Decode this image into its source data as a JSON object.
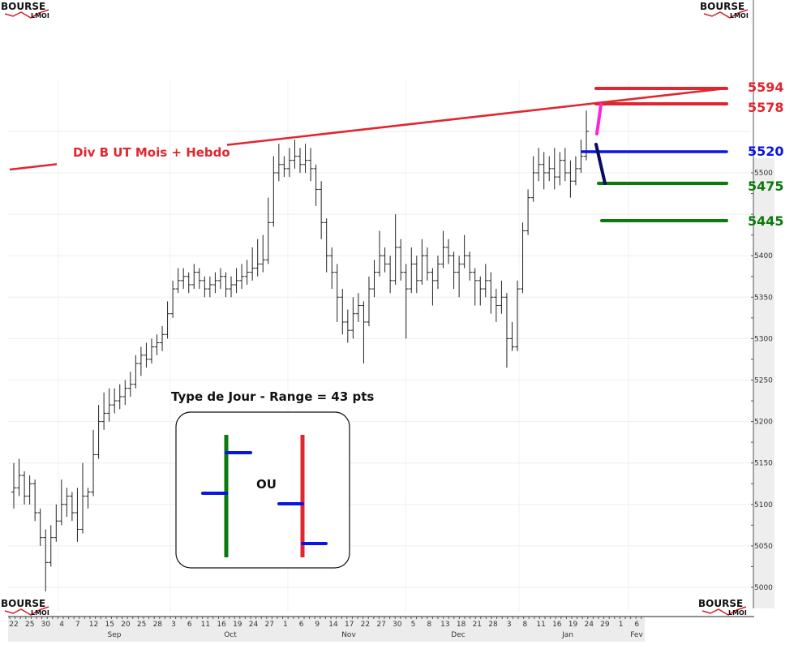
{
  "logo": {
    "text_top": "BOURSE",
    "text_bottom": "LMOI"
  },
  "chart_data": {
    "type": "ohlc",
    "title": "",
    "y_ticks": [
      5000,
      5050,
      5100,
      5150,
      5200,
      5250,
      5300,
      5350,
      5400,
      5500
    ],
    "ylim": [
      4990,
      5610
    ],
    "x_day_labels": [
      "22",
      "25",
      "30",
      "4",
      "7",
      "12",
      "15",
      "20",
      "25",
      "28",
      "3",
      "6",
      "11",
      "16",
      "19",
      "24",
      "27",
      "1",
      "6",
      "9",
      "14",
      "17",
      "22",
      "27",
      "30",
      "5",
      "8",
      "13",
      "18",
      "21",
      "28",
      "3",
      "8",
      "11",
      "16",
      "19",
      "24",
      "29",
      "1",
      "6"
    ],
    "x_month_labels": [
      {
        "label": "Sep",
        "after_index": 6
      },
      {
        "label": "Oct",
        "after_index": 13
      },
      {
        "label": "Nov",
        "after_index": 21
      },
      {
        "label": "Dec",
        "after_index": 28
      },
      {
        "label": "Jan",
        "after_index": 35
      },
      {
        "label": "Fev",
        "after_index": 39
      }
    ],
    "bars": [
      [
        5115,
        5150,
        5095,
        5120
      ],
      [
        5120,
        5155,
        5110,
        5135
      ],
      [
        5135,
        5140,
        5100,
        5110
      ],
      [
        5110,
        5135,
        5100,
        5125
      ],
      [
        5125,
        5130,
        5080,
        5090
      ],
      [
        5090,
        5095,
        5050,
        5060
      ],
      [
        5060,
        5070,
        4995,
        5030
      ],
      [
        5030,
        5075,
        5025,
        5060
      ],
      [
        5060,
        5100,
        5055,
        5080
      ],
      [
        5080,
        5130,
        5075,
        5100
      ],
      [
        5100,
        5120,
        5085,
        5110
      ],
      [
        5110,
        5115,
        5080,
        5090
      ],
      [
        5090,
        5120,
        5055,
        5070
      ],
      [
        5070,
        5150,
        5065,
        5110
      ],
      [
        5110,
        5120,
        5095,
        5115
      ],
      [
        5115,
        5190,
        5110,
        5160
      ],
      [
        5160,
        5220,
        5155,
        5200
      ],
      [
        5200,
        5235,
        5190,
        5210
      ],
      [
        5210,
        5240,
        5200,
        5220
      ],
      [
        5220,
        5240,
        5210,
        5225
      ],
      [
        5225,
        5245,
        5215,
        5230
      ],
      [
        5230,
        5250,
        5220,
        5240
      ],
      [
        5240,
        5260,
        5230,
        5245
      ],
      [
        5245,
        5280,
        5240,
        5270
      ],
      [
        5270,
        5290,
        5255,
        5280
      ],
      [
        5280,
        5295,
        5265,
        5275
      ],
      [
        5275,
        5300,
        5270,
        5290
      ],
      [
        5290,
        5305,
        5280,
        5295
      ],
      [
        5295,
        5315,
        5285,
        5305
      ],
      [
        5305,
        5345,
        5300,
        5330
      ],
      [
        5330,
        5370,
        5325,
        5360
      ],
      [
        5360,
        5385,
        5355,
        5370
      ],
      [
        5370,
        5385,
        5360,
        5375
      ],
      [
        5375,
        5380,
        5355,
        5365
      ],
      [
        5365,
        5390,
        5360,
        5380
      ],
      [
        5380,
        5385,
        5360,
        5370
      ],
      [
        5370,
        5375,
        5350,
        5360
      ],
      [
        5360,
        5375,
        5350,
        5365
      ],
      [
        5365,
        5380,
        5355,
        5370
      ],
      [
        5370,
        5385,
        5360,
        5375
      ],
      [
        5375,
        5380,
        5350,
        5360
      ],
      [
        5360,
        5375,
        5350,
        5365
      ],
      [
        5365,
        5385,
        5355,
        5370
      ],
      [
        5370,
        5390,
        5360,
        5375
      ],
      [
        5375,
        5395,
        5365,
        5380
      ],
      [
        5380,
        5410,
        5370,
        5385
      ],
      [
        5385,
        5420,
        5375,
        5390
      ],
      [
        5390,
        5425,
        5380,
        5395
      ],
      [
        5395,
        5470,
        5390,
        5440
      ],
      [
        5440,
        5520,
        5435,
        5500
      ],
      [
        5500,
        5535,
        5490,
        5510
      ],
      [
        5510,
        5520,
        5495,
        5505
      ],
      [
        5505,
        5530,
        5495,
        5515
      ],
      [
        5515,
        5540,
        5505,
        5520
      ],
      [
        5520,
        5530,
        5500,
        5510
      ],
      [
        5510,
        5535,
        5500,
        5515
      ],
      [
        5515,
        5530,
        5490,
        5505
      ],
      [
        5505,
        5510,
        5460,
        5480
      ],
      [
        5480,
        5490,
        5420,
        5440
      ],
      [
        5440,
        5445,
        5380,
        5400
      ],
      [
        5400,
        5410,
        5360,
        5380
      ],
      [
        5380,
        5390,
        5320,
        5350
      ],
      [
        5350,
        5360,
        5305,
        5320
      ],
      [
        5320,
        5335,
        5295,
        5310
      ],
      [
        5310,
        5350,
        5300,
        5330
      ],
      [
        5330,
        5355,
        5320,
        5340
      ],
      [
        5340,
        5345,
        5270,
        5320
      ],
      [
        5320,
        5375,
        5315,
        5360
      ],
      [
        5360,
        5395,
        5350,
        5380
      ],
      [
        5380,
        5430,
        5375,
        5400
      ],
      [
        5400,
        5410,
        5380,
        5390
      ],
      [
        5390,
        5400,
        5355,
        5370
      ],
      [
        5370,
        5450,
        5365,
        5410
      ],
      [
        5410,
        5420,
        5370,
        5380
      ],
      [
        5380,
        5390,
        5300,
        5360
      ],
      [
        5360,
        5410,
        5355,
        5390
      ],
      [
        5390,
        5400,
        5355,
        5370
      ],
      [
        5370,
        5420,
        5365,
        5400
      ],
      [
        5400,
        5410,
        5370,
        5380
      ],
      [
        5380,
        5385,
        5340,
        5370
      ],
      [
        5370,
        5400,
        5360,
        5390
      ],
      [
        5390,
        5430,
        5385,
        5410
      ],
      [
        5410,
        5420,
        5390,
        5400
      ],
      [
        5400,
        5405,
        5360,
        5380
      ],
      [
        5380,
        5400,
        5350,
        5390
      ],
      [
        5390,
        5425,
        5385,
        5400
      ],
      [
        5400,
        5405,
        5370,
        5380
      ],
      [
        5380,
        5385,
        5340,
        5370
      ],
      [
        5370,
        5375,
        5340,
        5360
      ],
      [
        5360,
        5390,
        5350,
        5370
      ],
      [
        5370,
        5380,
        5330,
        5350
      ],
      [
        5350,
        5360,
        5320,
        5340
      ],
      [
        5340,
        5370,
        5330,
        5350
      ],
      [
        5350,
        5355,
        5265,
        5300
      ],
      [
        5300,
        5320,
        5285,
        5290
      ],
      [
        5290,
        5370,
        5285,
        5360
      ],
      [
        5360,
        5440,
        5355,
        5430
      ],
      [
        5430,
        5480,
        5425,
        5470
      ],
      [
        5470,
        5520,
        5465,
        5500
      ],
      [
        5500,
        5530,
        5490,
        5510
      ],
      [
        5510,
        5525,
        5480,
        5500
      ],
      [
        5500,
        5520,
        5490,
        5505
      ],
      [
        5505,
        5530,
        5480,
        5495
      ],
      [
        5495,
        5525,
        5485,
        5515
      ],
      [
        5515,
        5530,
        5490,
        5500
      ],
      [
        5500,
        5515,
        5470,
        5490
      ],
      [
        5490,
        5520,
        5485,
        5505
      ],
      [
        5505,
        5540,
        5500,
        5520
      ],
      [
        5520,
        5575,
        5515,
        5550
      ]
    ],
    "trendline": {
      "label": "Div B UT Mois + Hebdo",
      "from_price": 5502,
      "to_price": 5602,
      "color": "#e0262e"
    },
    "levels": [
      {
        "label": "5594",
        "price": 5594,
        "color": "#e0262e"
      },
      {
        "label": "5578",
        "price": 5578,
        "color": "#e0262e"
      },
      {
        "label": "5520",
        "price": 5520,
        "color": "#0a14e6"
      },
      {
        "label": "5475",
        "price": 5475,
        "color": "#0b7a0b"
      },
      {
        "label": "5445",
        "price": 5445,
        "color": "#0b7a0b"
      }
    ],
    "projection_colors": {
      "up": "#ff22dd",
      "down": "#0a0a60"
    }
  },
  "legend_box": {
    "title": "Type de Jour - Range = 43 pts",
    "or_label": "OU",
    "bull_color": "#0b7a0b",
    "bear_color": "#e0262e",
    "tick_color": "#0a14e6"
  }
}
